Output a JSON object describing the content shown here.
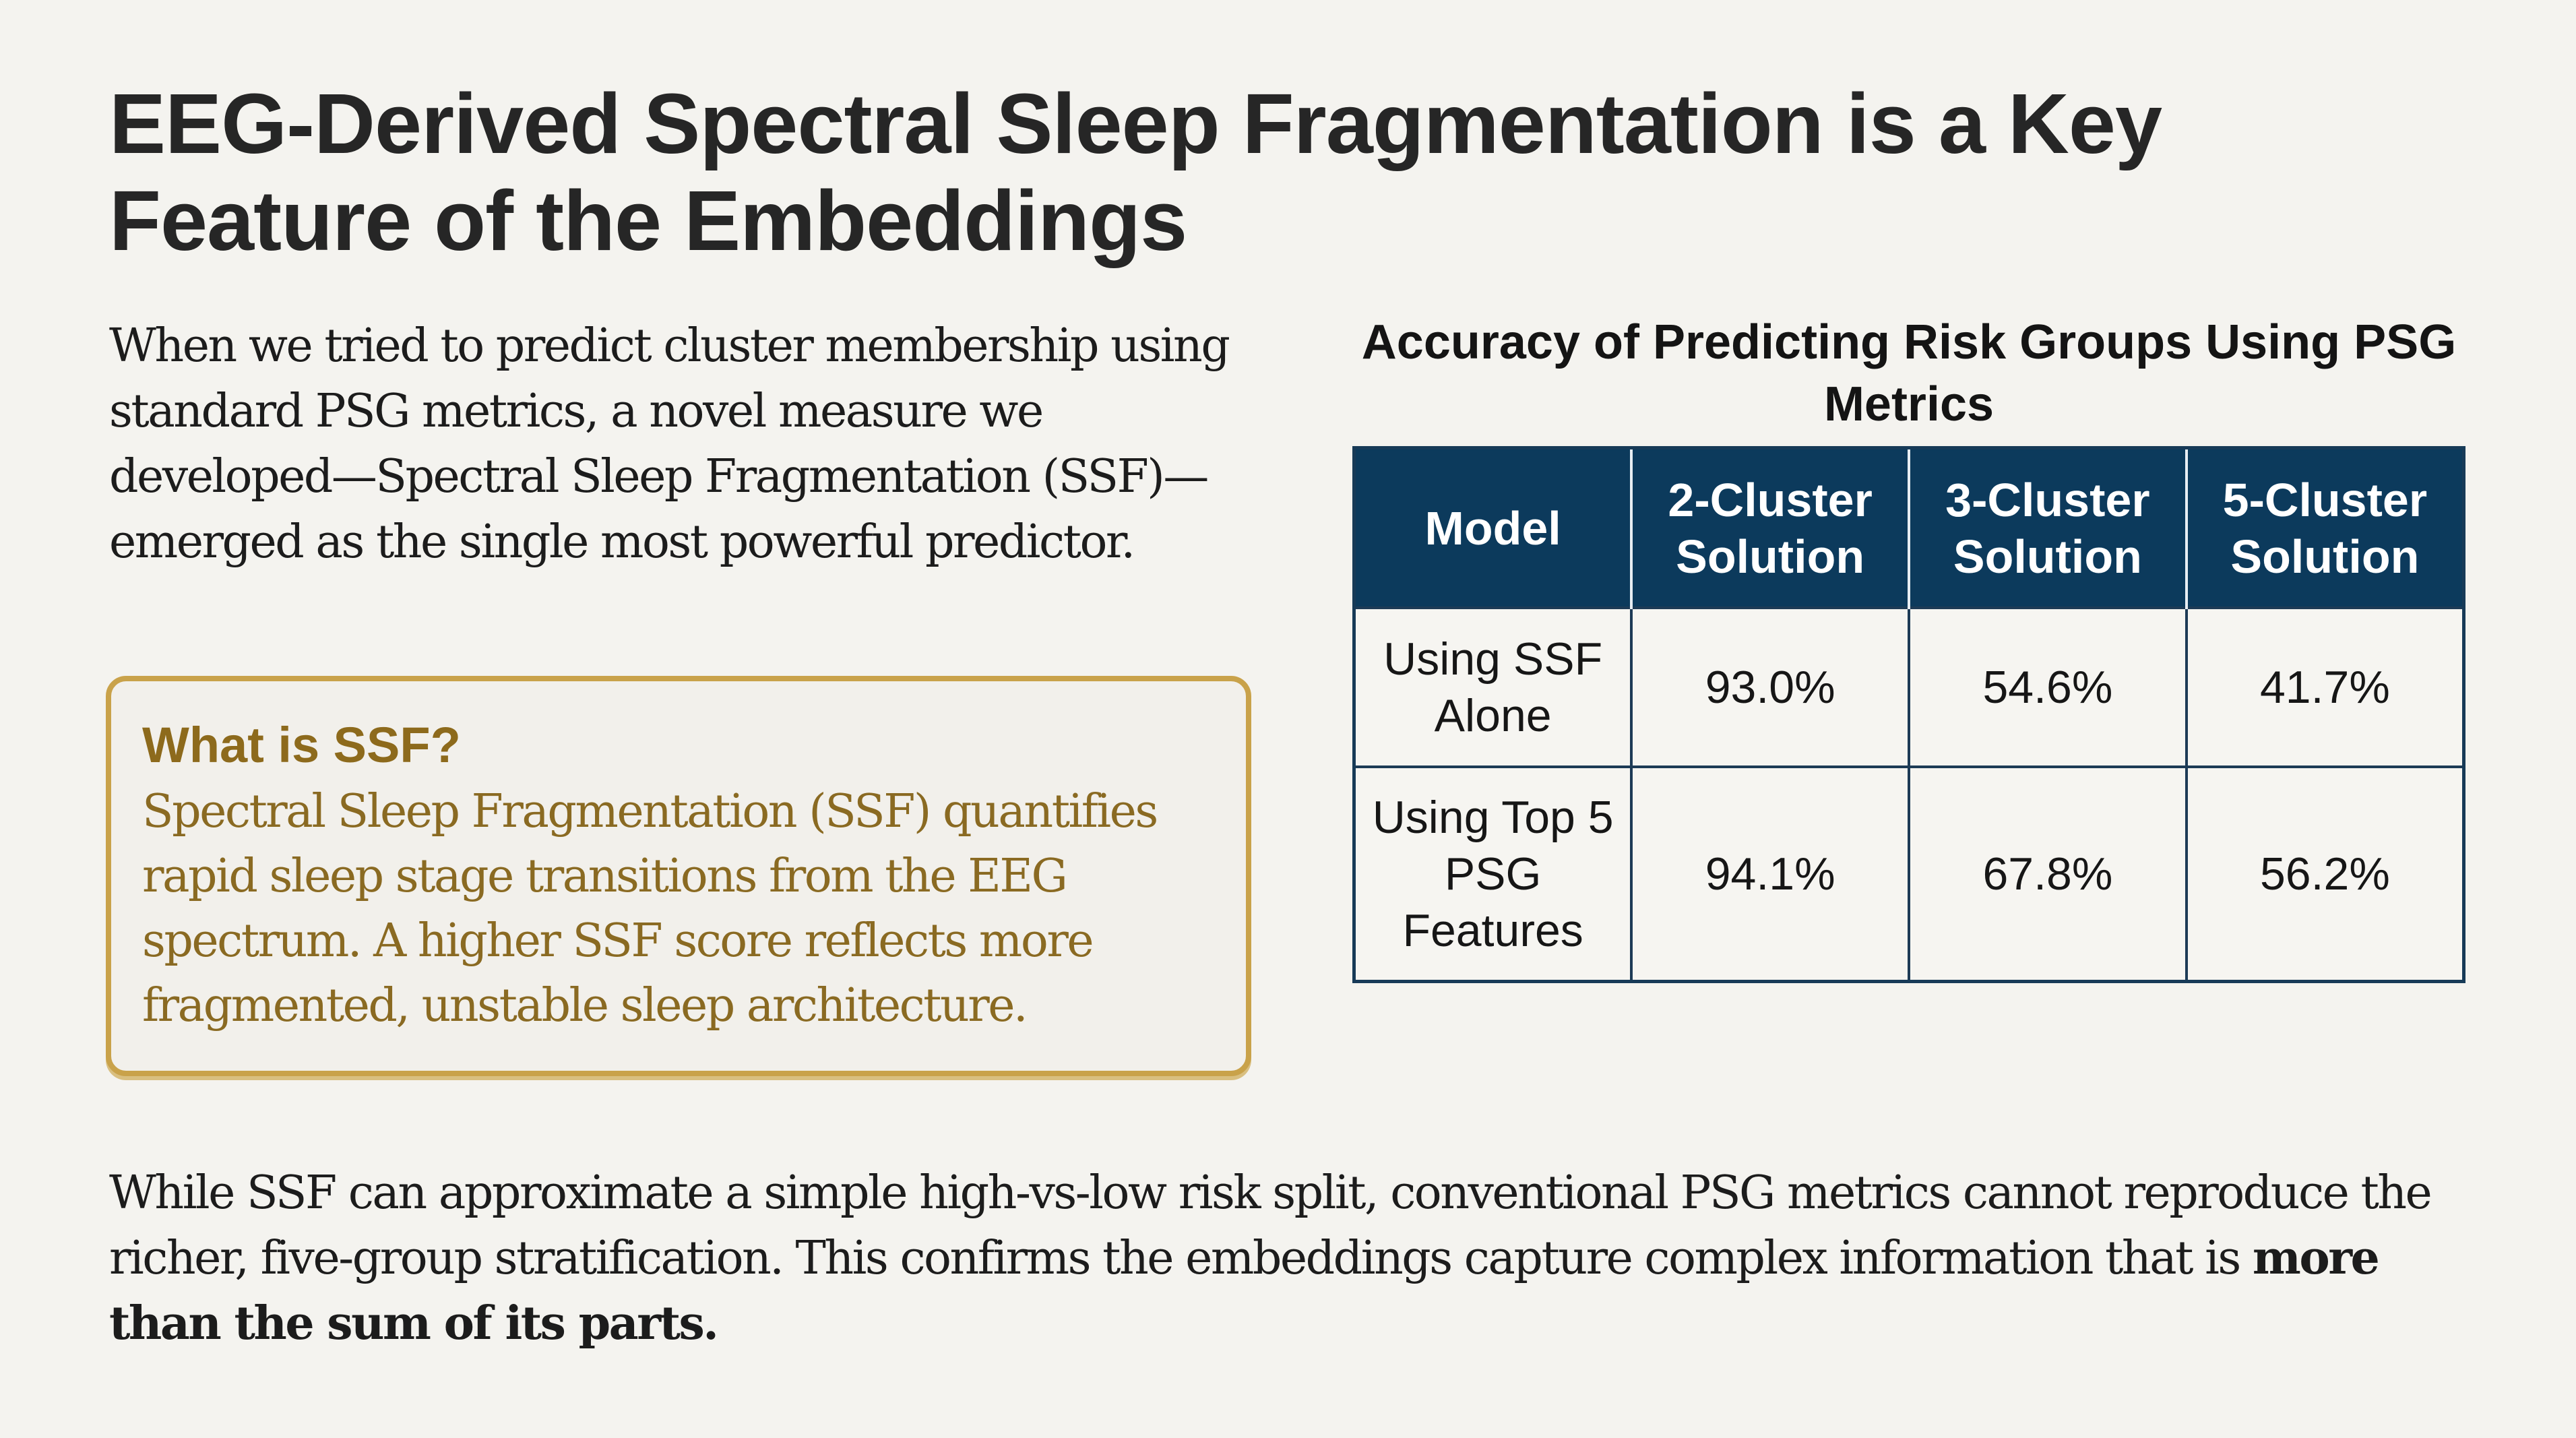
{
  "slide": {
    "title": "EEG-Derived Spectral Sleep Fragmentation is a Key Feature of the Embeddings",
    "intro": "When we tried to predict cluster membership using standard PSG metrics, a novel measure we developed—Spectral Sleep Fragmentation (SSF)—emerged as the single most powerful predictor.",
    "callout": {
      "title": "What is SSF?",
      "body": "Spectral Sleep Fragmentation (SSF) quantifies rapid sleep stage transitions from the EEG spectrum. A higher SSF score reflects more fragmented, unstable sleep architecture."
    },
    "conclusion": {
      "text": "While SSF can approximate a simple high-vs-low risk split, conventional PSG metrics cannot reproduce the richer, five-group stratification. This confirms the embeddings capture complex information that is ",
      "emphasis": "more than the sum of its parts."
    },
    "colors": {
      "background": "#f4f3ef",
      "table_header": "#0c3a5c",
      "callout_border": "#c9a24a",
      "callout_text": "#8a6a22"
    }
  },
  "table": {
    "caption": "Accuracy of Predicting Risk Groups Using PSG Metrics",
    "headers": [
      "Model",
      "2-Cluster Solution",
      "3-Cluster Solution",
      "5-Cluster Solution"
    ],
    "rows": [
      {
        "model": "Using SSF Alone",
        "values": [
          "93.0%",
          "54.6%",
          "41.7%"
        ]
      },
      {
        "model": "Using Top 5 PSG Features",
        "values": [
          "94.1%",
          "67.8%",
          "56.2%"
        ]
      }
    ]
  },
  "chart_data": {
    "type": "table",
    "title": "Accuracy of Predicting Risk Groups Using PSG Metrics",
    "categories": [
      "2-Cluster Solution",
      "3-Cluster Solution",
      "5-Cluster Solution"
    ],
    "series": [
      {
        "name": "Using SSF Alone",
        "values": [
          93.0,
          54.6,
          41.7
        ]
      },
      {
        "name": "Using Top 5 PSG Features",
        "values": [
          94.1,
          67.8,
          56.2
        ]
      }
    ],
    "unit": "%"
  }
}
